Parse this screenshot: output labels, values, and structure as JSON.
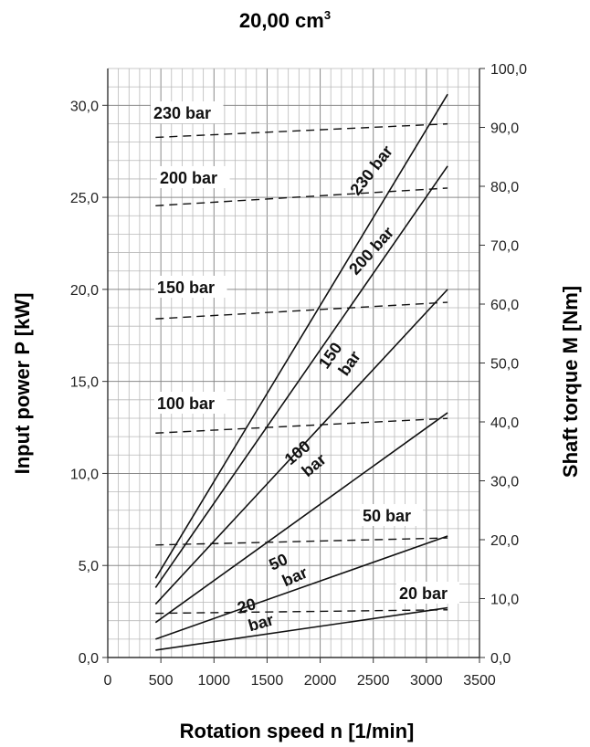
{
  "chart_data": {
    "type": "line",
    "title": "20,00 cm",
    "title_superscript": "3",
    "xlabel": "Rotation speed n [1/min]",
    "ylabel_left": "Input power P [kW]",
    "ylabel_right": "Shaft torque M [Nm]",
    "xlim": [
      0,
      3500
    ],
    "ylim_left": [
      0,
      32
    ],
    "ylim_right": [
      0,
      100
    ],
    "grid": true,
    "x_ticks": [
      "0",
      "500",
      "1000",
      "1500",
      "2000",
      "2500",
      "3000",
      "3500"
    ],
    "y_ticks_left": [
      "0,0",
      "5,0",
      "10,0",
      "15,0",
      "20,0",
      "25,0",
      "30,0"
    ],
    "y_ticks_right": [
      "0,0",
      "10,0",
      "20,0",
      "30,0",
      "40,0",
      "50,0",
      "60,0",
      "70,0",
      "80,0",
      "90,0",
      "100,0"
    ],
    "power_series": [
      {
        "label_line1": "230",
        "label_line2": "bar",
        "x": [
          450,
          3200
        ],
        "y": [
          4.3,
          30.6
        ]
      },
      {
        "label_line1": "200",
        "label_line2": "bar",
        "x": [
          450,
          3200
        ],
        "y": [
          3.8,
          26.7
        ]
      },
      {
        "label_line1": "150",
        "label_line2": "bar",
        "x": [
          450,
          3200
        ],
        "y": [
          2.9,
          20.0
        ]
      },
      {
        "label_line1": "100",
        "label_line2": "bar",
        "x": [
          450,
          3200
        ],
        "y": [
          1.9,
          13.3
        ]
      },
      {
        "label_line1": "50",
        "label_line2": "bar",
        "x": [
          450,
          3200
        ],
        "y": [
          1.0,
          6.6
        ]
      },
      {
        "label_line1": "20",
        "label_line2": "bar",
        "x": [
          450,
          3200
        ],
        "y": [
          0.4,
          2.7
        ]
      }
    ],
    "torque_series": [
      {
        "label": "230 bar",
        "x": [
          450,
          3200
        ],
        "y": [
          88.3,
          90.6
        ]
      },
      {
        "label": "200 bar",
        "x": [
          450,
          3200
        ],
        "y": [
          76.7,
          79.7
        ]
      },
      {
        "label": "150 bar",
        "x": [
          450,
          3200
        ],
        "y": [
          57.5,
          60.3
        ]
      },
      {
        "label": "100 bar",
        "x": [
          450,
          3200
        ],
        "y": [
          38.1,
          40.6
        ]
      },
      {
        "label": "50 bar",
        "x": [
          450,
          3200
        ],
        "y": [
          19.1,
          20.3
        ]
      },
      {
        "label": "20 bar",
        "x": [
          450,
          3200
        ],
        "y": [
          7.5,
          8.1
        ]
      }
    ]
  }
}
